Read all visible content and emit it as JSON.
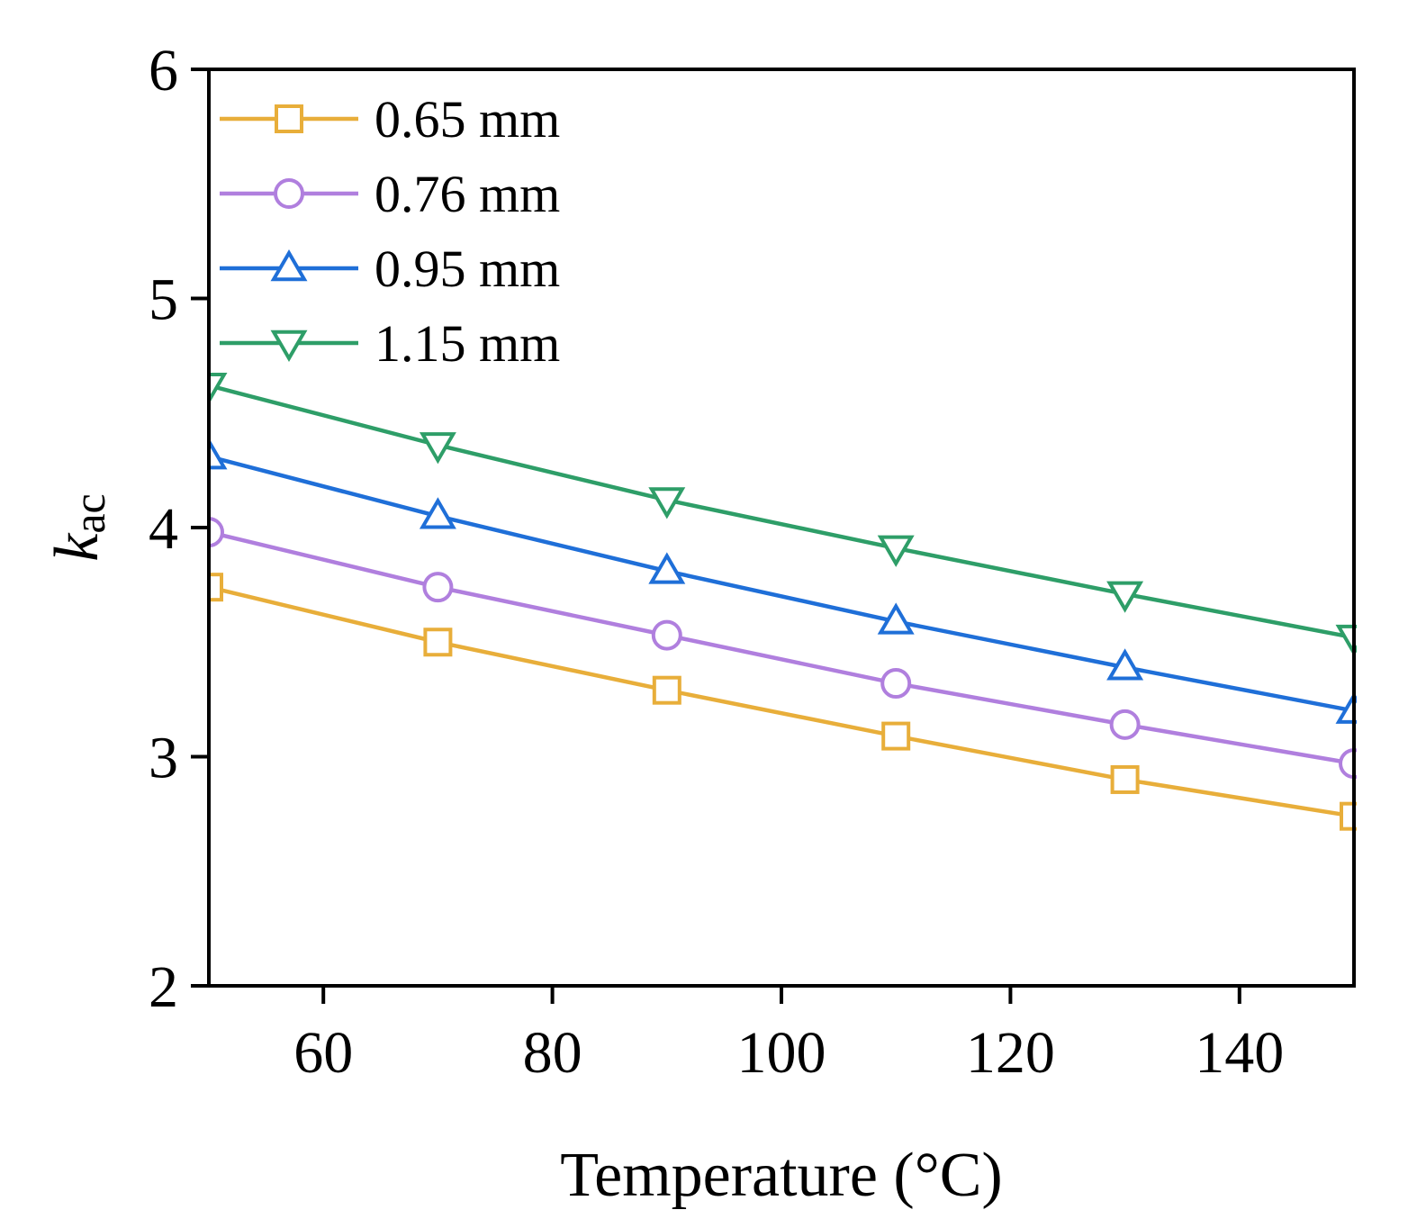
{
  "chart_data": {
    "type": "line",
    "xlabel": "Temperature (°C)",
    "ylabel": {
      "main": "k",
      "sub": "ac"
    },
    "xlim": [
      50,
      150
    ],
    "ylim": [
      2,
      6
    ],
    "xticks": [
      60,
      80,
      100,
      120,
      140
    ],
    "xtick_labels": [
      "60",
      "80",
      "100",
      "120",
      "140"
    ],
    "yticks": [
      2,
      3,
      4,
      5,
      6
    ],
    "ytick_labels": [
      "2",
      "3",
      "4",
      "5",
      "6"
    ],
    "x": [
      50,
      70,
      90,
      110,
      130,
      150
    ],
    "legend_position": "top-left",
    "grid": false,
    "series": [
      {
        "name": "0.65 mm",
        "color": "#E8AE3A",
        "marker": "square",
        "values": [
          3.74,
          3.5,
          3.29,
          3.09,
          2.9,
          2.74
        ]
      },
      {
        "name": "0.76 mm",
        "color": "#B07FDE",
        "marker": "circle",
        "values": [
          3.98,
          3.74,
          3.53,
          3.32,
          3.14,
          2.97
        ]
      },
      {
        "name": "0.95 mm",
        "color": "#1F6FD8",
        "marker": "triangle-up",
        "values": [
          4.31,
          4.05,
          3.81,
          3.59,
          3.39,
          3.2
        ]
      },
      {
        "name": "1.15 mm",
        "color": "#2E9E68",
        "marker": "triangle-down",
        "values": [
          4.62,
          4.36,
          4.12,
          3.91,
          3.71,
          3.52
        ]
      }
    ]
  }
}
